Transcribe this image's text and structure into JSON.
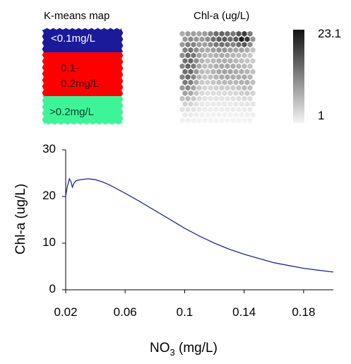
{
  "kmeans_panel": {
    "title": "K-means map",
    "clusters": [
      {
        "label": "<0.1mg/L",
        "color": "#1a1a9a",
        "text_color": "#ffffff"
      },
      {
        "label_line1": "0.1-",
        "label_line2": "0.2mg/L",
        "color": "#ff0000",
        "text_color": "#3a0000"
      },
      {
        "label": ">0.2mg/L",
        "color": "#3df598",
        "text_color": "#10402a"
      }
    ]
  },
  "chla_panel": {
    "title": "Chl-a (ug/L)",
    "scale_max": "23.1",
    "scale_min": "1"
  },
  "chart_data": {
    "type": "line",
    "title": "",
    "xlabel_main": "NO",
    "xlabel_sub": "3",
    "xlabel_unit": " (mg/L)",
    "ylabel": "Chl-a (ug/L)",
    "xlim": [
      0.02,
      0.2
    ],
    "ylim": [
      0,
      30
    ],
    "xticks": [
      0.02,
      0.06,
      0.1,
      0.14,
      0.18
    ],
    "xtick_labels": [
      "0.02",
      "0.06",
      "0.1",
      "0.14",
      "0.18"
    ],
    "yticks": [
      0,
      10,
      20,
      30
    ],
    "ytick_labels": [
      "0",
      "10",
      "20",
      "30"
    ],
    "grid": false,
    "line_color": "#1f2a9a",
    "series": [
      {
        "x": [
          0.02,
          0.021,
          0.0225,
          0.0235,
          0.0245,
          0.0255,
          0.027,
          0.03,
          0.035,
          0.04,
          0.045,
          0.05,
          0.06,
          0.07,
          0.08,
          0.09,
          0.1,
          0.11,
          0.12,
          0.13,
          0.14,
          0.15,
          0.16,
          0.17,
          0.18,
          0.19,
          0.2
        ],
        "y": [
          20.0,
          22.0,
          23.8,
          23.2,
          22.0,
          22.8,
          23.4,
          23.6,
          23.8,
          23.6,
          23.1,
          22.4,
          20.7,
          18.9,
          17.0,
          15.1,
          13.2,
          11.5,
          10.0,
          8.7,
          7.6,
          6.7,
          5.8,
          5.2,
          4.6,
          4.2,
          3.8
        ]
      }
    ]
  }
}
